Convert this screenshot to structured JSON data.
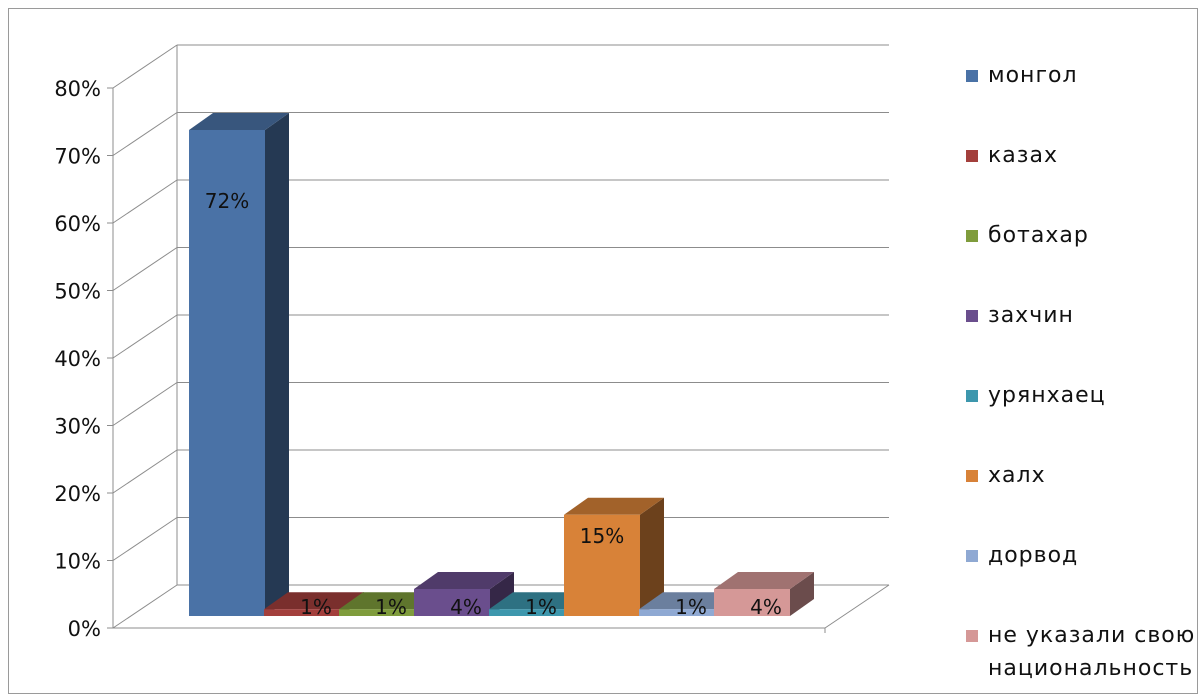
{
  "chart_data": {
    "type": "bar",
    "categories": [
      "монгол",
      "казах",
      "ботахар",
      "захчин",
      "урянхаец",
      "халх",
      "дорвод",
      "не указали свою национальность"
    ],
    "values": [
      72,
      1,
      1,
      4,
      1,
      15,
      1,
      4
    ],
    "data_labels": [
      "72%",
      "1%",
      "1%",
      "4%",
      "1%",
      "15%",
      "1%",
      "4%"
    ],
    "colors": [
      "#4a72a6",
      "#a33f3c",
      "#7f9c3c",
      "#6a4e8d",
      "#3d97ad",
      "#d88238",
      "#8fa9d3",
      "#d59897"
    ],
    "ylim": [
      0,
      80
    ],
    "yticks": [
      "0%",
      "10%",
      "20%",
      "30%",
      "40%",
      "50%",
      "60%",
      "70%",
      "80%"
    ],
    "title": "",
    "xlabel": "",
    "ylabel": "",
    "grid": true,
    "three_d": true,
    "legend_position": "right"
  }
}
